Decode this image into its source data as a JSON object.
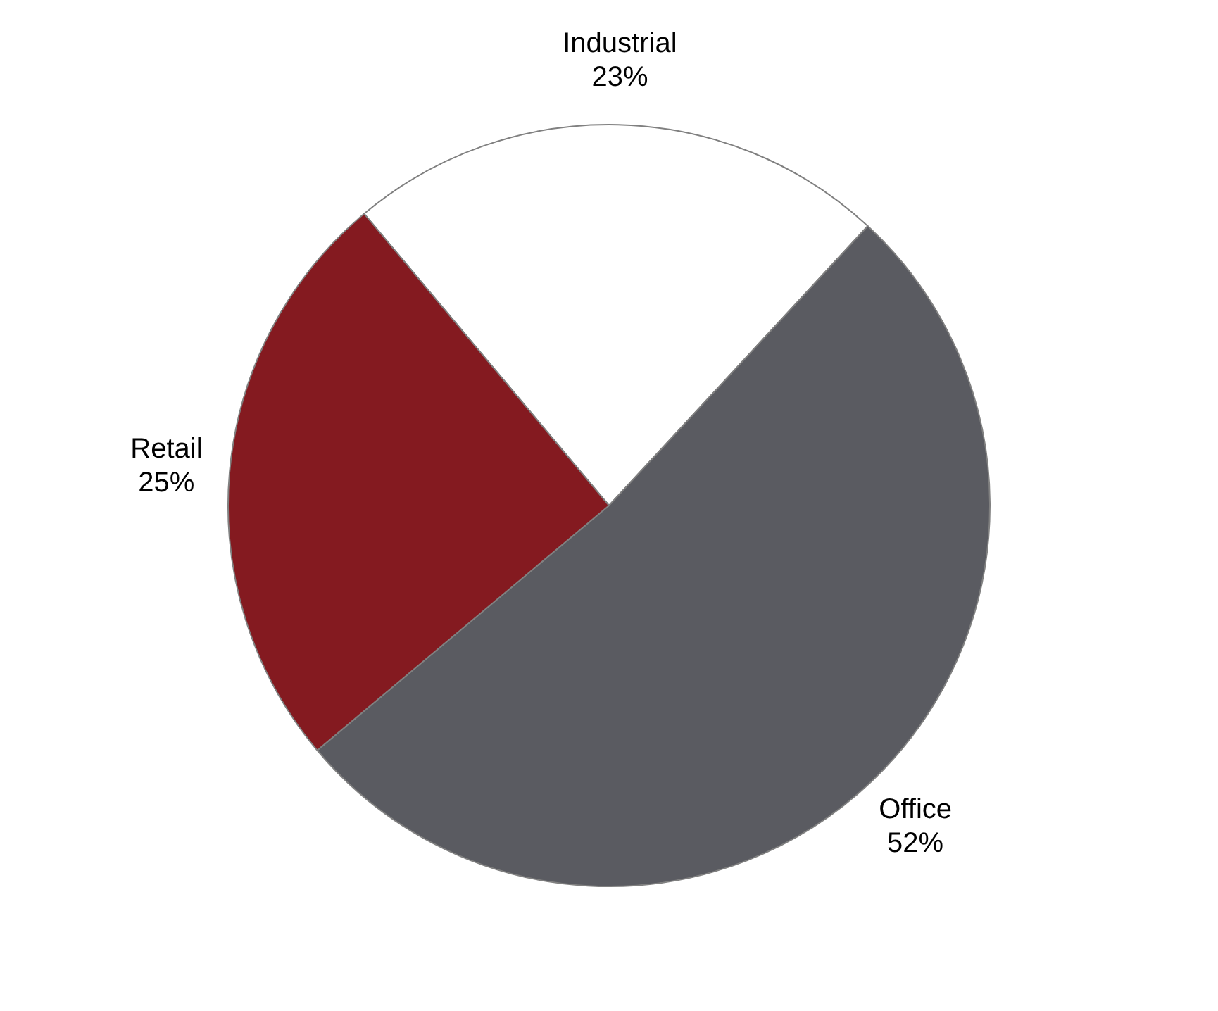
{
  "chart_data": {
    "type": "pie",
    "categories": [
      "Industrial",
      "Office",
      "Retail"
    ],
    "values": [
      23,
      52,
      25
    ],
    "value_labels": [
      "23%",
      "52%",
      "25%"
    ],
    "colors": [
      "#ffffff",
      "#5a5b61",
      "#841a20"
    ],
    "legend": false
  }
}
